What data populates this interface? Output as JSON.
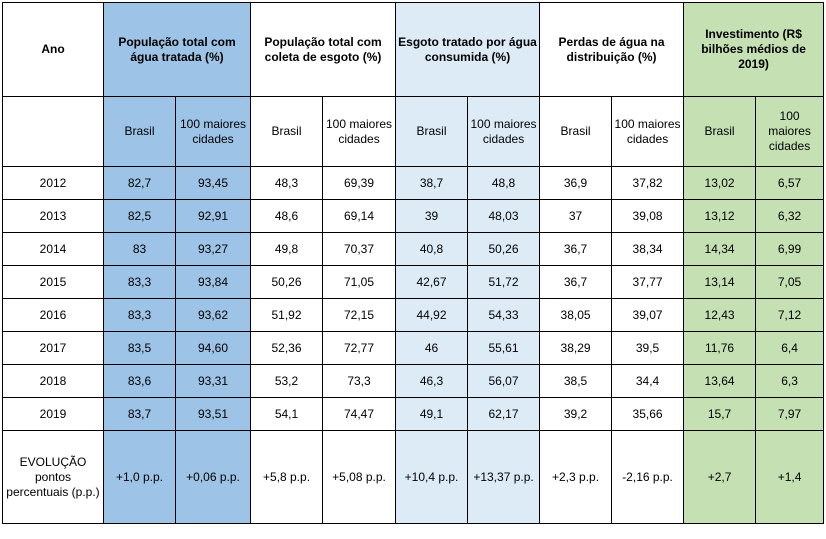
{
  "header": {
    "year": "Ano",
    "groups": [
      "População total com água tratada (%)",
      "População total com coleta de esgoto (%)",
      "Esgoto tratado por água consumida (%)",
      "Perdas de água na distribuição (%)",
      "Investimento (R$ bilhões médios de 2019)"
    ],
    "sub_brasil": "Brasil",
    "sub_cidades": "100 maiores cidades"
  },
  "colors": {
    "blue": "#9dc3e6",
    "light_blue": "#ddebf7",
    "green": "#c5e0b3"
  },
  "rows": [
    {
      "year": "2012",
      "values": [
        "82,7",
        "93,45",
        "48,3",
        "69,39",
        "38,7",
        "48,8",
        "36,9",
        "37,82",
        "13,02",
        "6,57"
      ]
    },
    {
      "year": "2013",
      "values": [
        "82,5",
        "92,91",
        "48,6",
        "69,14",
        "39",
        "48,03",
        "37",
        "39,08",
        "13,12",
        "6,32"
      ]
    },
    {
      "year": "2014",
      "values": [
        "83",
        "93,27",
        "49,8",
        "70,37",
        "40,8",
        "50,26",
        "36,7",
        "38,34",
        "14,34",
        "6,99"
      ]
    },
    {
      "year": "2015",
      "values": [
        "83,3",
        "93,84",
        "50,26",
        "71,05",
        "42,67",
        "51,72",
        "36,7",
        "37,77",
        "13,14",
        "7,05"
      ]
    },
    {
      "year": "2016",
      "values": [
        "83,3",
        "93,62",
        "51,92",
        "72,15",
        "44,92",
        "54,33",
        "38,05",
        "39,07",
        "12,43",
        "7,12"
      ]
    },
    {
      "year": "2017",
      "values": [
        "83,5",
        "94,60",
        "52,36",
        "72,77",
        "46",
        "55,61",
        "38,29",
        "39,5",
        "11,76",
        "6,4"
      ]
    },
    {
      "year": "2018",
      "values": [
        "83,6",
        "93,31",
        "53,2",
        "73,3",
        "46,3",
        "56,07",
        "38,5",
        "34,4",
        "13,64",
        "6,3"
      ]
    },
    {
      "year": "2019",
      "values": [
        "83,7",
        "93,51",
        "54,1",
        "74,47",
        "49,1",
        "62,17",
        "39,2",
        "35,66",
        "15,7",
        "7,97"
      ]
    }
  ],
  "evolution": {
    "label": "EVOLUÇÃO pontos percentuais (p.p.)",
    "values": [
      "+1,0 p.p.",
      "+0,06 p.p.",
      "+5,8 p.p.",
      "+5,08 p.p.",
      "+10,4 p.p.",
      "+13,37 p.p.",
      "+2,3 p.p.",
      "-2,16 p.p.",
      "+2,7",
      "+1,4"
    ]
  }
}
